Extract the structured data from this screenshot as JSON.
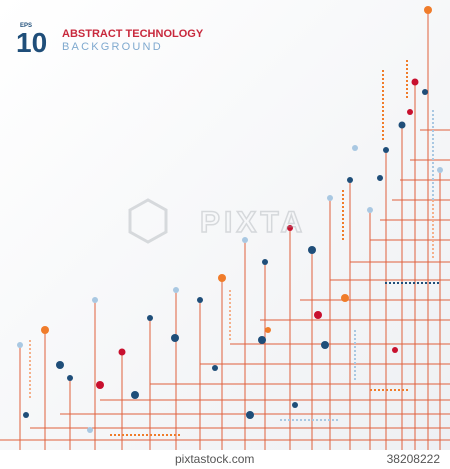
{
  "header": {
    "badge_top": "EPS",
    "badge_number": "10",
    "title": "ABSTRACT TECHNOLOGY",
    "subtitle": "BACKGROUND"
  },
  "watermark": "PIXTA",
  "footer": {
    "site": "pixtastock.com",
    "id": "38208222"
  }
}
